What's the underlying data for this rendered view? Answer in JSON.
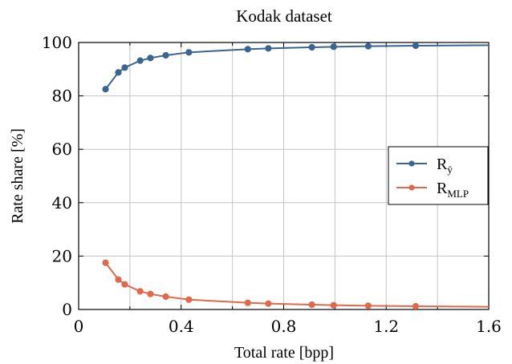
{
  "chart_data": {
    "type": "line",
    "title": "Kodak dataset",
    "xlabel": "Total rate [bpp]",
    "ylabel": "Rate share [%]",
    "xlim": [
      0,
      1.6
    ],
    "ylim": [
      0,
      100
    ],
    "x_ticks": [
      0,
      0.4,
      0.8,
      1.2,
      1.6
    ],
    "x_tick_labels": [
      "0",
      "0.4",
      "0.8",
      "1.2",
      "1.6"
    ],
    "y_ticks": [
      0,
      20,
      40,
      60,
      80,
      100
    ],
    "y_tick_labels": [
      "0",
      "20",
      "40",
      "60",
      "80",
      "100"
    ],
    "grid": true,
    "legend_position": "right",
    "series": [
      {
        "name": "R",
        "name_sub": "ŷ",
        "color": "#3a6591",
        "x": [
          0.105,
          0.155,
          0.18,
          0.24,
          0.28,
          0.34,
          0.43,
          0.66,
          0.74,
          0.91,
          0.995,
          1.13,
          1.315,
          1.6
        ],
        "y": [
          82.5,
          88.8,
          90.6,
          93.2,
          94.2,
          95.2,
          96.3,
          97.5,
          97.8,
          98.2,
          98.4,
          98.6,
          98.8,
          99.0
        ],
        "markers_count": 13
      },
      {
        "name": "R",
        "name_sub": "MLP",
        "color": "#e0694d",
        "x": [
          0.105,
          0.155,
          0.18,
          0.24,
          0.28,
          0.34,
          0.43,
          0.66,
          0.74,
          0.91,
          0.995,
          1.13,
          1.315,
          1.6
        ],
        "y": [
          17.5,
          11.2,
          9.4,
          6.8,
          5.8,
          4.8,
          3.7,
          2.5,
          2.2,
          1.8,
          1.6,
          1.4,
          1.2,
          1.0
        ],
        "markers_count": 13
      }
    ]
  }
}
